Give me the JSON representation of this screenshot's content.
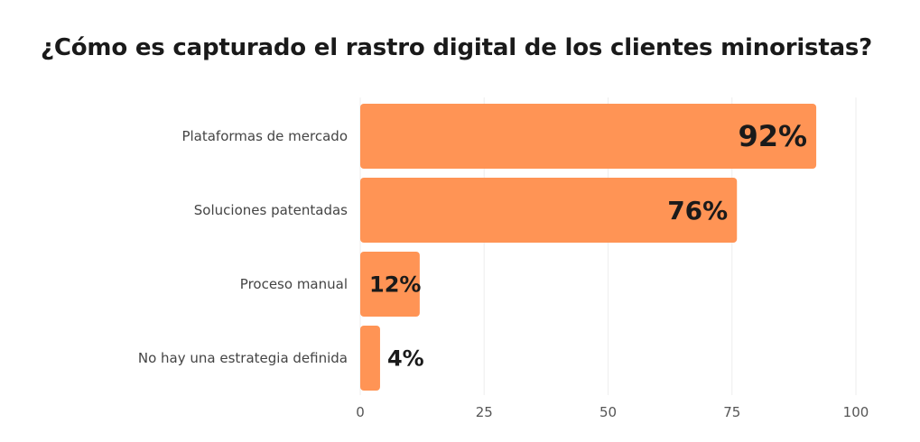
{
  "chart_data": {
    "type": "bar",
    "orientation": "horizontal",
    "title": "¿Cómo es capturado el rastro digital de los clientes minoristas?",
    "categories": [
      "Plataformas de mercado",
      "Soluciones patentadas",
      "Proceso manual",
      "No hay una estrategia definida"
    ],
    "values": [
      92,
      76,
      12,
      4
    ],
    "value_labels": [
      "92%",
      "76%",
      "12%",
      "4%"
    ],
    "xlim": [
      0,
      100
    ],
    "xticks": [
      0,
      25,
      50,
      75,
      100
    ],
    "grid": true,
    "bar_color": "#FF9455",
    "grid_color": "#EEEEEE"
  }
}
